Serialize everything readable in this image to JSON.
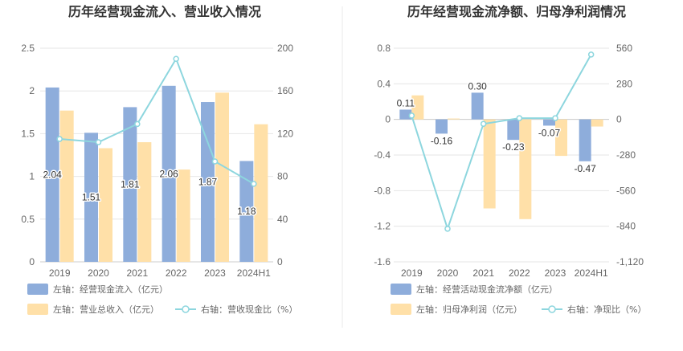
{
  "colors": {
    "inflow_bar": "#8eaddb",
    "revenue_bar": "#ffe0a8",
    "ratio_line": "#8dd6de",
    "grid": "#e6e6e6",
    "divider": "#e8e8e8"
  },
  "chart_data": [
    {
      "type": "bar",
      "title": "历年经营现金流入、营业收入情况",
      "categories": [
        "2019",
        "2020",
        "2021",
        "2022",
        "2023",
        "2024H1"
      ],
      "y_left": {
        "range": [
          0,
          2.5
        ],
        "ticks": [
          "0",
          "0.5",
          "1",
          "1.5",
          "2",
          "2.5"
        ]
      },
      "y_right": {
        "range": [
          0,
          200
        ],
        "ticks": [
          "0",
          "40",
          "80",
          "120",
          "160",
          "200"
        ]
      },
      "grid": true,
      "legend_position": "bottom-left",
      "series": [
        {
          "name": "左轴：经营现金流入（亿元）",
          "kind": "bar",
          "axis": "left",
          "values": [
            2.04,
            1.51,
            1.81,
            2.06,
            1.87,
            1.18
          ],
          "labels": [
            "2.04",
            "1.51",
            "1.81",
            "2.06",
            "1.87",
            "1.18"
          ]
        },
        {
          "name": "左轴：营业总收入（亿元）",
          "kind": "bar",
          "axis": "left",
          "values": [
            1.77,
            1.33,
            1.4,
            1.08,
            1.98,
            1.61
          ]
        },
        {
          "name": "右轴：营收现金比（%）",
          "kind": "line",
          "axis": "right",
          "values": [
            115,
            112,
            129,
            190,
            94,
            73
          ]
        }
      ]
    },
    {
      "type": "bar",
      "title": "历年经营现金流净额、归母净利润情况",
      "categories": [
        "2019",
        "2020",
        "2021",
        "2022",
        "2023",
        "2024H1"
      ],
      "y_left": {
        "range": [
          -1.6,
          0.8
        ],
        "ticks": [
          "-1.6",
          "-1.2",
          "-0.8",
          "-0.4",
          "0",
          "0.4",
          "0.8"
        ]
      },
      "y_right": {
        "range": [
          -1120,
          560
        ],
        "ticks": [
          "-1,120",
          "-840",
          "-560",
          "-280",
          "0",
          "280",
          "560"
        ]
      },
      "grid": true,
      "legend_position": "bottom-left",
      "series": [
        {
          "name": "左轴：经营活动现金流净额（亿元）",
          "kind": "bar",
          "axis": "left",
          "values": [
            0.11,
            -0.16,
            0.3,
            -0.23,
            -0.07,
            -0.47
          ],
          "labels": [
            "0.11",
            "-0.16",
            "0.30",
            "-0.23",
            "-0.07",
            "-0.47"
          ]
        },
        {
          "name": "左轴：归母净利润（亿元）",
          "kind": "bar",
          "axis": "left",
          "values": [
            0.27,
            0.01,
            -1.0,
            -1.12,
            -0.41,
            -0.08
          ]
        },
        {
          "name": "右轴：净现比（%）",
          "kind": "line",
          "axis": "right",
          "values": [
            30,
            -860,
            -35,
            10,
            10,
            510
          ]
        }
      ]
    }
  ]
}
